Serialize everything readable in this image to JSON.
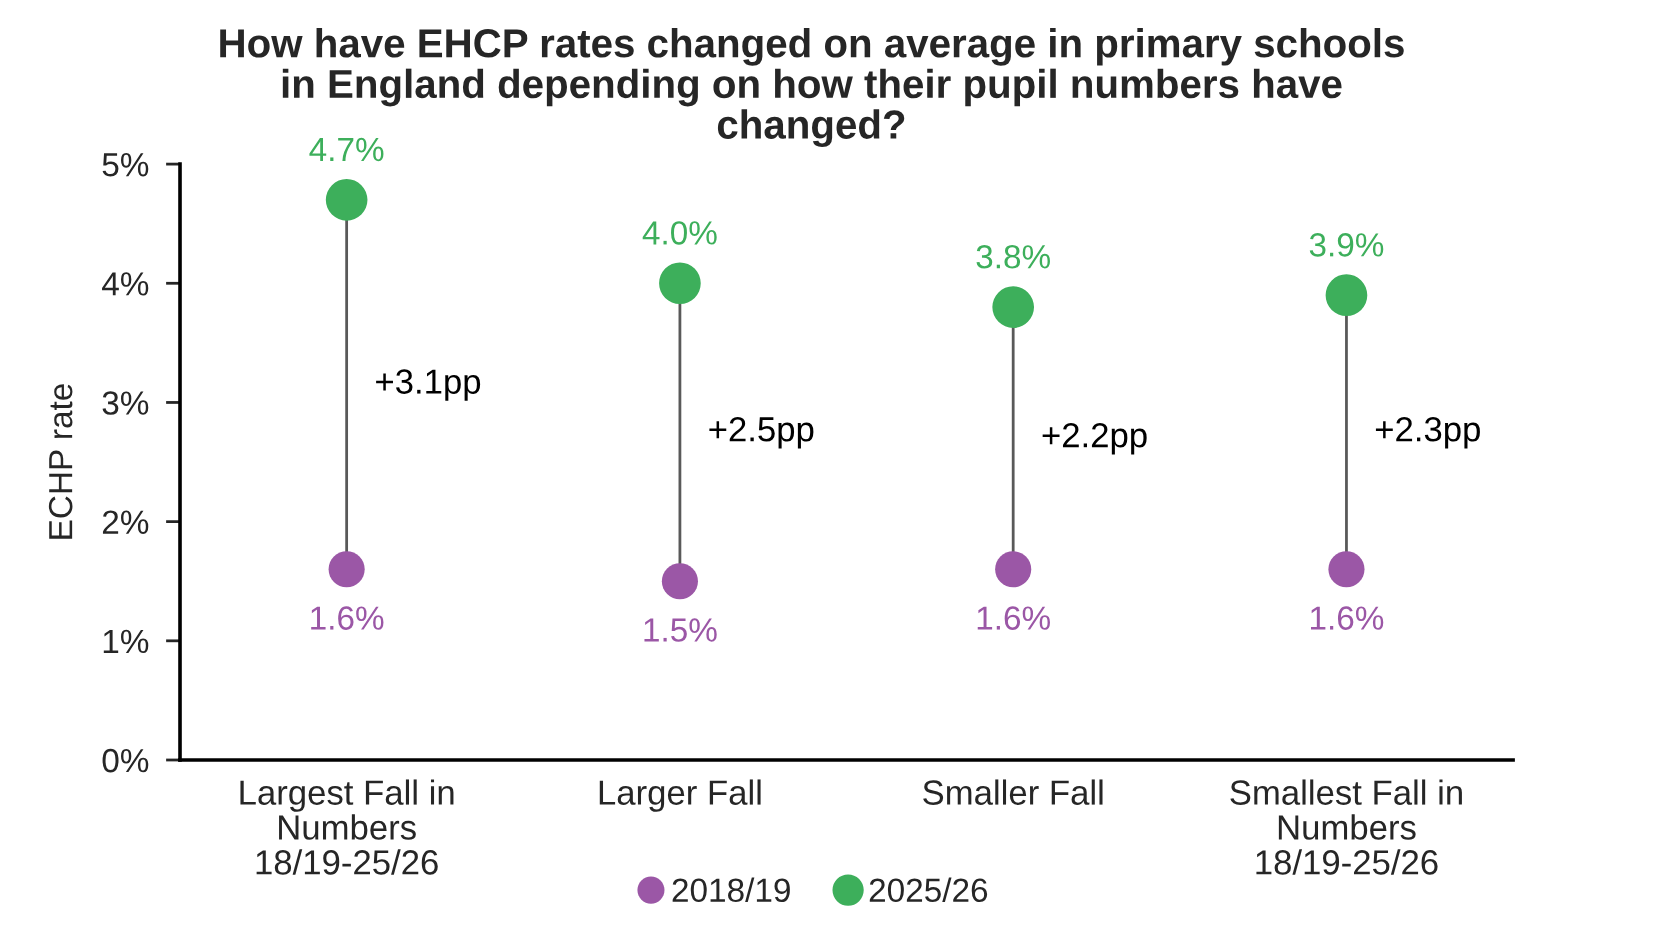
{
  "chart_data": {
    "type": "scatter",
    "title": "How have EHCP rates changed on average in primary schools\nin England depending on how their pupil numbers have\nchanged?",
    "ylabel": "ECHP rate",
    "categories": [
      "Largest Fall in\nNumbers\n18/19-25/26",
      "Larger Fall",
      "Smaller Fall",
      "Smallest Fall in\nNumbers\n18/19-25/26"
    ],
    "series": [
      {
        "name": "2018/19",
        "color": "#9b57a6",
        "values": [
          1.6,
          1.5,
          1.6,
          1.6
        ],
        "value_labels": [
          "1.6%",
          "1.5%",
          "1.6%",
          "1.6%"
        ]
      },
      {
        "name": "2025/26",
        "color": "#3daf5b",
        "values": [
          4.7,
          4.0,
          3.8,
          3.9
        ],
        "value_labels": [
          "4.7%",
          "4.0%",
          "3.8%",
          "3.9%"
        ]
      }
    ],
    "ylim": [
      0,
      5
    ],
    "yticks": [
      {
        "value": 0,
        "label": "0%"
      },
      {
        "value": 1,
        "label": "1%"
      },
      {
        "value": 2,
        "label": "2%"
      },
      {
        "value": 3,
        "label": "3%"
      },
      {
        "value": 4,
        "label": "4%"
      },
      {
        "value": 5,
        "label": "5%"
      }
    ],
    "annotations": [
      "+3.1pp",
      "+2.5pp",
      "+2.2pp",
      "+2.3pp"
    ],
    "marker": "circle",
    "legend": "bottom"
  }
}
